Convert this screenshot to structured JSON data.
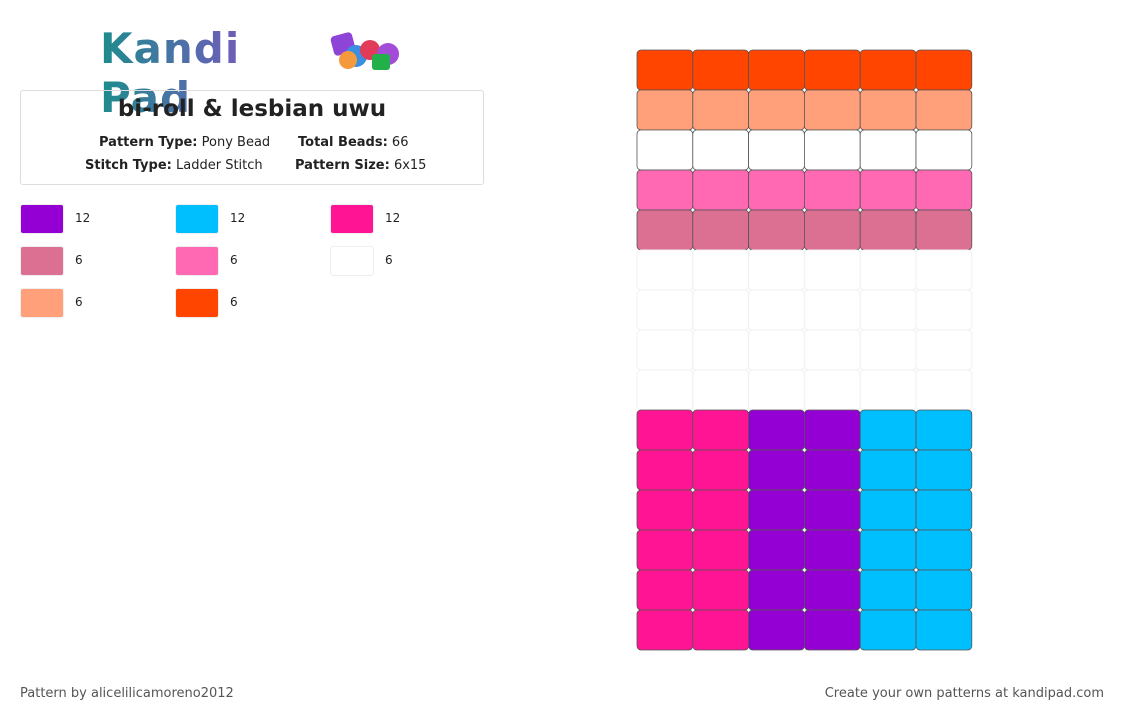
{
  "header": {
    "logo": "Kandi Pad",
    "title": "bi-roll & lesbian uwu",
    "info": [
      {
        "key": "Pattern Type:",
        "value": "Pony Bead"
      },
      {
        "key": "Total Beads:",
        "value": "66"
      },
      {
        "key": "Stitch Type:",
        "value": "Ladder Stitch"
      },
      {
        "key": "Pattern Size:",
        "value": "6x15"
      }
    ]
  },
  "legend": [
    {
      "color": "#9400d3",
      "count": 12
    },
    {
      "color": "#00bfff",
      "count": 12
    },
    {
      "color": "#ff1493",
      "count": 12
    },
    {
      "color": "#db7093",
      "count": 6
    },
    {
      "color": "#ff69b4",
      "count": 6
    },
    {
      "color": "#ffffff",
      "count": 6
    },
    {
      "color": "#ffa07a",
      "count": 6
    },
    {
      "color": "#ff4500",
      "count": 6
    }
  ],
  "grid": {
    "columns": 6,
    "rows": [
      [
        "#ff4500",
        "#ff4500",
        "#ff4500",
        "#ff4500",
        "#ff4500",
        "#ff4500"
      ],
      [
        "#ffa07a",
        "#ffa07a",
        "#ffa07a",
        "#ffa07a",
        "#ffa07a",
        "#ffa07a"
      ],
      [
        "#ffffff",
        "#ffffff",
        "#ffffff",
        "#ffffff",
        "#ffffff",
        "#ffffff"
      ],
      [
        "#ff69b4",
        "#ff69b4",
        "#ff69b4",
        "#ff69b4",
        "#ff69b4",
        "#ff69b4"
      ],
      [
        "#db7093",
        "#db7093",
        "#db7093",
        "#db7093",
        "#db7093",
        "#db7093"
      ],
      [
        null,
        null,
        null,
        null,
        null,
        null
      ],
      [
        null,
        null,
        null,
        null,
        null,
        null
      ],
      [
        null,
        null,
        null,
        null,
        null,
        null
      ],
      [
        null,
        null,
        null,
        null,
        null,
        null
      ],
      [
        "#ff1493",
        "#ff1493",
        "#9400d3",
        "#9400d3",
        "#00bfff",
        "#00bfff"
      ],
      [
        "#ff1493",
        "#ff1493",
        "#9400d3",
        "#9400d3",
        "#00bfff",
        "#00bfff"
      ],
      [
        "#ff1493",
        "#ff1493",
        "#9400d3",
        "#9400d3",
        "#00bfff",
        "#00bfff"
      ],
      [
        "#ff1493",
        "#ff1493",
        "#9400d3",
        "#9400d3",
        "#00bfff",
        "#00bfff"
      ],
      [
        "#ff1493",
        "#ff1493",
        "#9400d3",
        "#9400d3",
        "#00bfff",
        "#00bfff"
      ],
      [
        "#ff1493",
        "#ff1493",
        "#9400d3",
        "#9400d3",
        "#00bfff",
        "#00bfff"
      ]
    ]
  },
  "footer": {
    "left": "Pattern by alicelilicamoreno2012",
    "right": "Create your own patterns at kandipad.com"
  }
}
